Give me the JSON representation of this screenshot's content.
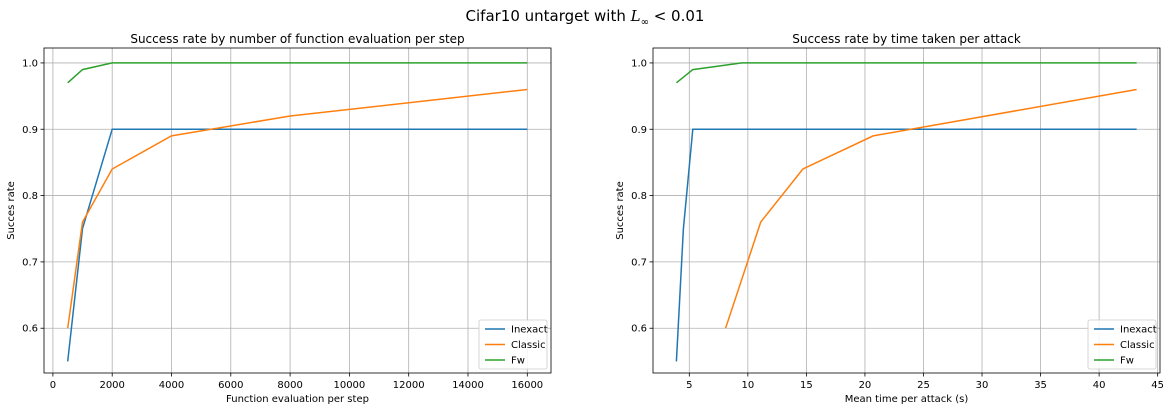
{
  "figure": {
    "suptitle_prefix": "Cifar10 untarget with ",
    "suptitle_math": "L",
    "suptitle_sub": "∞",
    "suptitle_suffix": " < 0.01"
  },
  "colors": {
    "Inexact": "#1f77b4",
    "Classic": "#ff7f0e",
    "Fw": "#2ca02c",
    "grid": "#b0b0b0"
  },
  "chart_data": [
    {
      "type": "line",
      "title": "Success rate by number of function evaluation per step",
      "xlabel": "Function evaluation per step",
      "ylabel": "Succes rate",
      "xlim": [
        -300,
        16800
      ],
      "ylim": [
        0.5325,
        1.0225
      ],
      "xticks": [
        0,
        2000,
        4000,
        6000,
        8000,
        10000,
        12000,
        14000,
        16000
      ],
      "yticks": [
        0.6,
        0.7,
        0.8,
        0.9,
        1.0
      ],
      "ytick_labels": [
        "0.6",
        "0.7",
        "0.8",
        "0.9",
        "1.0"
      ],
      "grid": true,
      "legend_position": "lower right",
      "series": [
        {
          "name": "Inexact",
          "x": [
            500,
            1000,
            2000,
            4000,
            8000,
            16000
          ],
          "y": [
            0.55,
            0.75,
            0.9,
            0.9,
            0.9,
            0.9
          ]
        },
        {
          "name": "Classic",
          "x": [
            500,
            1000,
            2000,
            4000,
            8000,
            16000
          ],
          "y": [
            0.6,
            0.76,
            0.84,
            0.89,
            0.92,
            0.96
          ]
        },
        {
          "name": "Fw",
          "x": [
            500,
            1000,
            2000,
            4000,
            8000,
            16000
          ],
          "y": [
            0.97,
            0.99,
            1.0,
            1.0,
            1.0,
            1.0
          ]
        }
      ]
    },
    {
      "type": "line",
      "title": "Success rate by time taken per attack",
      "xlabel": "Mean time per attack (s)",
      "ylabel": "Succes rate",
      "xlim": [
        1.9,
        45.2
      ],
      "ylim": [
        0.5325,
        1.0225
      ],
      "xticks": [
        5,
        10,
        15,
        20,
        25,
        30,
        35,
        40,
        45
      ],
      "yticks": [
        0.6,
        0.7,
        0.8,
        0.9,
        1.0
      ],
      "ytick_labels": [
        "0.6",
        "0.7",
        "0.8",
        "0.9",
        "1.0"
      ],
      "grid": true,
      "legend_position": "lower right",
      "series": [
        {
          "name": "Inexact",
          "x": [
            3.9,
            4.5,
            5.3,
            6.0,
            43.2
          ],
          "y": [
            0.55,
            0.75,
            0.9,
            0.9,
            0.9
          ]
        },
        {
          "name": "Classic",
          "x": [
            8.1,
            11.1,
            14.7,
            20.7,
            43.2
          ],
          "y": [
            0.6,
            0.76,
            0.84,
            0.89,
            0.96
          ]
        },
        {
          "name": "Fw",
          "x": [
            3.9,
            5.3,
            9.5,
            43.2
          ],
          "y": [
            0.97,
            0.99,
            1.0,
            1.0
          ]
        }
      ]
    }
  ]
}
